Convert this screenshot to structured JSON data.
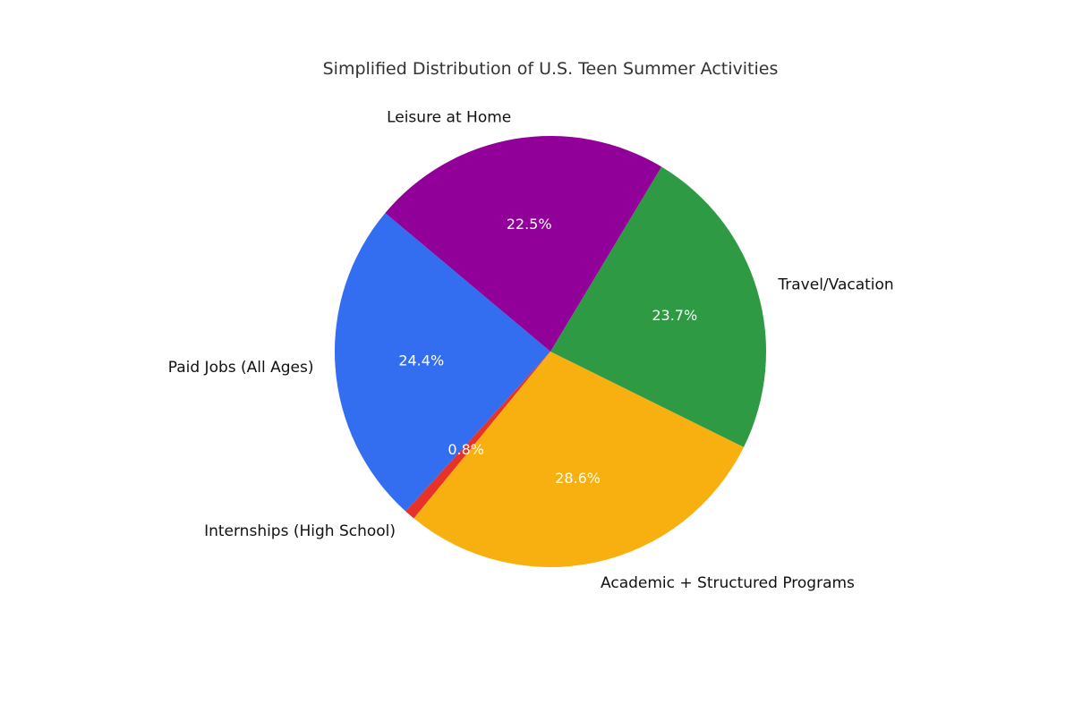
{
  "chart_data": {
    "type": "pie",
    "title": "Simplified Distribution of U.S. Teen Summer Activities",
    "slices": [
      {
        "label": "Paid Jobs (All Ages)",
        "value": 24.4,
        "pct_label": "24.4%",
        "color": "#346ef0"
      },
      {
        "label": "Internships (High School)",
        "value": 0.8,
        "pct_label": "0.8%",
        "color": "#e63228"
      },
      {
        "label": "Academic + Structured Programs",
        "value": 28.6,
        "pct_label": "28.6%",
        "color": "#f7b00f"
      },
      {
        "label": "Travel/Vacation",
        "value": 23.7,
        "pct_label": "23.7%",
        "color": "#2e9b44"
      },
      {
        "label": "Leisure at Home",
        "value": 22.5,
        "pct_label": "22.5%",
        "color": "#92009a"
      }
    ],
    "start_angle_deg": 140,
    "direction": "counterclockwise",
    "legend": "none"
  }
}
